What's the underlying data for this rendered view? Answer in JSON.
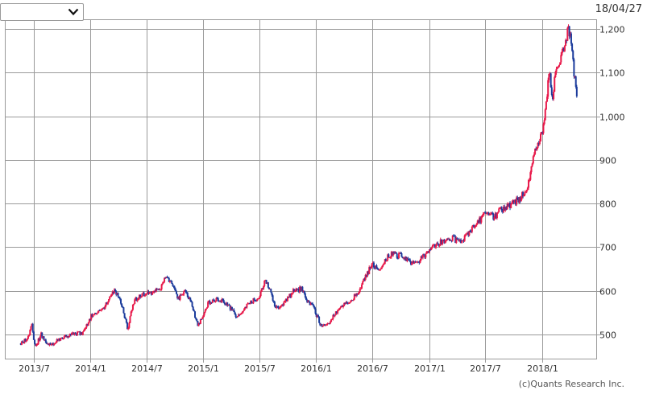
{
  "header": {
    "select_value": "",
    "dropdown_icon": "chevron-down-icon",
    "date": "18/04/27"
  },
  "footer": {
    "copyright": "(c)Quants Research Inc."
  },
  "chart_data": {
    "type": "candlestick",
    "title": "",
    "xlabel": "",
    "ylabel": "",
    "ylim": [
      445,
      1220
    ],
    "y_ticks": [
      500,
      600,
      700,
      800,
      900,
      1000,
      1100,
      1200
    ],
    "y_tick_labels": [
      "500",
      "600",
      "700",
      "800",
      "900",
      "1,000",
      "1,100",
      "1,200"
    ],
    "x_range": [
      "2013-04-01",
      "2018-06-26"
    ],
    "x_ticks": [
      "2013-07-01",
      "2014-01-01",
      "2014-07-01",
      "2015-01-01",
      "2015-07-01",
      "2016-01-01",
      "2016-07-01",
      "2017-01-01",
      "2017-07-01",
      "2018-01-01"
    ],
    "x_tick_labels": [
      "2013/7",
      "2014/1",
      "2014/7",
      "2015/1",
      "2015/7",
      "2016/1",
      "2016/7",
      "2017/1",
      "2017/7",
      "2018/1"
    ],
    "grid": true,
    "y_axis_position": "right",
    "colors": {
      "up": "#e8194a",
      "down": "#1c3c9c",
      "grid": "#9a9a9a"
    },
    "price_path": [
      [
        "2013-05-20",
        480
      ],
      [
        "2013-06-10",
        490
      ],
      [
        "2013-06-25",
        525
      ],
      [
        "2013-07-05",
        470
      ],
      [
        "2013-07-25",
        500
      ],
      [
        "2013-08-10",
        480
      ],
      [
        "2013-08-25",
        475
      ],
      [
        "2013-09-20",
        490
      ],
      [
        "2013-11-01",
        500
      ],
      [
        "2013-12-10",
        505
      ],
      [
        "2014-01-05",
        545
      ],
      [
        "2014-02-10",
        560
      ],
      [
        "2014-03-20",
        600
      ],
      [
        "2014-04-10",
        575
      ],
      [
        "2014-05-01",
        510
      ],
      [
        "2014-05-20",
        575
      ],
      [
        "2014-06-10",
        590
      ],
      [
        "2014-07-10",
        595
      ],
      [
        "2014-08-15",
        605
      ],
      [
        "2014-09-01",
        635
      ],
      [
        "2014-09-20",
        620
      ],
      [
        "2014-10-10",
        580
      ],
      [
        "2014-11-01",
        600
      ],
      [
        "2014-11-20",
        580
      ],
      [
        "2014-12-15",
        520
      ],
      [
        "2015-01-20",
        575
      ],
      [
        "2015-02-20",
        580
      ],
      [
        "2015-03-15",
        570
      ],
      [
        "2015-04-01",
        560
      ],
      [
        "2015-04-20",
        540
      ],
      [
        "2015-05-15",
        560
      ],
      [
        "2015-06-05",
        575
      ],
      [
        "2015-07-01",
        585
      ],
      [
        "2015-07-20",
        625
      ],
      [
        "2015-08-05",
        600
      ],
      [
        "2015-08-25",
        560
      ],
      [
        "2015-09-15",
        570
      ],
      [
        "2015-10-20",
        600
      ],
      [
        "2015-11-15",
        605
      ],
      [
        "2015-12-01",
        580
      ],
      [
        "2015-12-25",
        560
      ],
      [
        "2016-01-20",
        515
      ],
      [
        "2016-02-15",
        530
      ],
      [
        "2016-03-15",
        560
      ],
      [
        "2016-04-15",
        575
      ],
      [
        "2016-05-15",
        595
      ],
      [
        "2016-06-15",
        640
      ],
      [
        "2016-07-01",
        665
      ],
      [
        "2016-07-20",
        645
      ],
      [
        "2016-08-10",
        670
      ],
      [
        "2016-09-01",
        685
      ],
      [
        "2016-10-01",
        680
      ],
      [
        "2016-11-01",
        665
      ],
      [
        "2016-12-01",
        670
      ],
      [
        "2017-01-10",
        700
      ],
      [
        "2017-02-15",
        715
      ],
      [
        "2017-03-20",
        720
      ],
      [
        "2017-04-10",
        710
      ],
      [
        "2017-05-10",
        735
      ],
      [
        "2017-06-10",
        760
      ],
      [
        "2017-07-01",
        775
      ],
      [
        "2017-08-01",
        770
      ],
      [
        "2017-08-20",
        785
      ],
      [
        "2017-09-15",
        795
      ],
      [
        "2017-10-20",
        810
      ],
      [
        "2017-11-15",
        840
      ],
      [
        "2017-12-01",
        890
      ],
      [
        "2017-12-15",
        935
      ],
      [
        "2018-01-01",
        960
      ],
      [
        "2018-01-15",
        1030
      ],
      [
        "2018-01-25",
        1100
      ],
      [
        "2018-02-05",
        1040
      ],
      [
        "2018-02-15",
        1110
      ],
      [
        "2018-03-01",
        1130
      ],
      [
        "2018-03-15",
        1160
      ],
      [
        "2018-03-28",
        1200
      ],
      [
        "2018-04-05",
        1175
      ],
      [
        "2018-04-15",
        1100
      ],
      [
        "2018-04-26",
        1040
      ]
    ]
  }
}
